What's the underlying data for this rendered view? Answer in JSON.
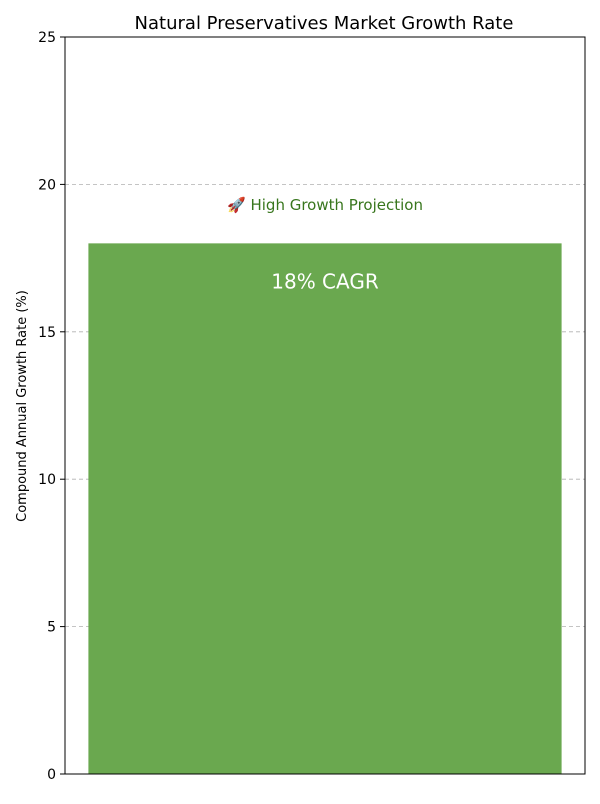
{
  "chart_data": {
    "type": "bar",
    "title": "Natural Preservatives Market Growth Rate",
    "xlabel": "",
    "ylabel": "Compound Annual Growth Rate (%)",
    "ylim": [
      0,
      25
    ],
    "yticks": [
      0,
      5,
      10,
      15,
      20,
      25
    ],
    "grid": true,
    "categories": [
      ""
    ],
    "values": [
      18
    ],
    "bar_labels": [
      "18% CAGR"
    ],
    "annotation": "🚀 High Growth Projection",
    "colors": {
      "bar": "#6aa84f",
      "bar_label": "#ffffff",
      "annotation": "#38761d",
      "grid": "#b0b0b0",
      "axis": "#000000"
    }
  }
}
